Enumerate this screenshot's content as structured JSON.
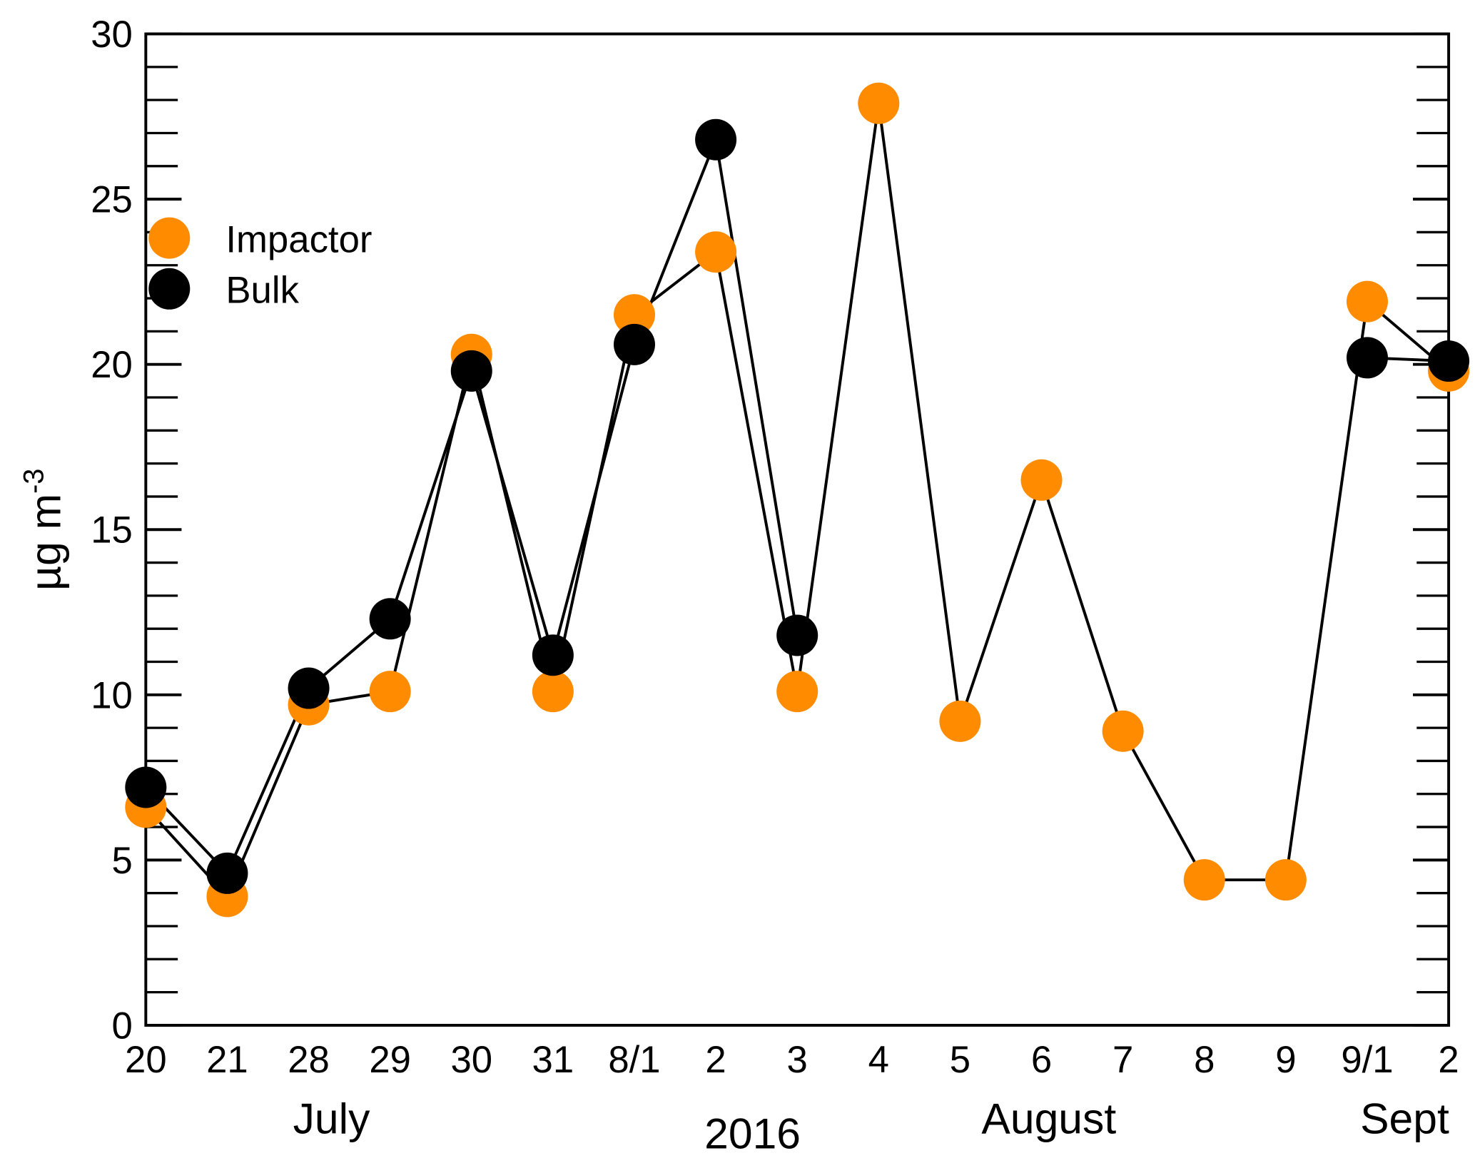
{
  "chart_data": {
    "type": "line",
    "categories": [
      "20",
      "21",
      "28",
      "29",
      "30",
      "31",
      "8/1",
      "2",
      "3",
      "4",
      "5",
      "6",
      "7",
      "8",
      "9",
      "9/1",
      "2"
    ],
    "x_groups": [
      "July",
      "August",
      "Sept"
    ],
    "xlabel": "2016",
    "ylabel": "µg m",
    "ylabel_superscript": "-3",
    "series": [
      {
        "name": "Impactor",
        "color": "#ff8c00",
        "values": [
          6.6,
          3.9,
          9.7,
          10.1,
          20.3,
          10.1,
          21.5,
          23.4,
          10.1,
          27.9,
          9.2,
          16.5,
          8.9,
          4.4,
          4.4,
          21.9,
          19.8
        ]
      },
      {
        "name": "Bulk",
        "color": "#000000",
        "values": [
          7.2,
          4.6,
          10.2,
          12.3,
          19.8,
          11.2,
          20.6,
          26.8,
          11.8,
          null,
          null,
          null,
          null,
          null,
          null,
          20.2,
          20.1
        ]
      }
    ],
    "ylim": [
      0,
      30
    ],
    "yticks": [
      0,
      5,
      10,
      15,
      20,
      25,
      30
    ],
    "yminorticks": [
      1,
      2,
      3,
      4,
      6,
      7,
      8,
      9,
      11,
      12,
      13,
      14,
      16,
      17,
      18,
      19,
      21,
      22,
      23,
      24,
      26,
      27,
      28,
      29
    ],
    "legend": "upper left"
  }
}
